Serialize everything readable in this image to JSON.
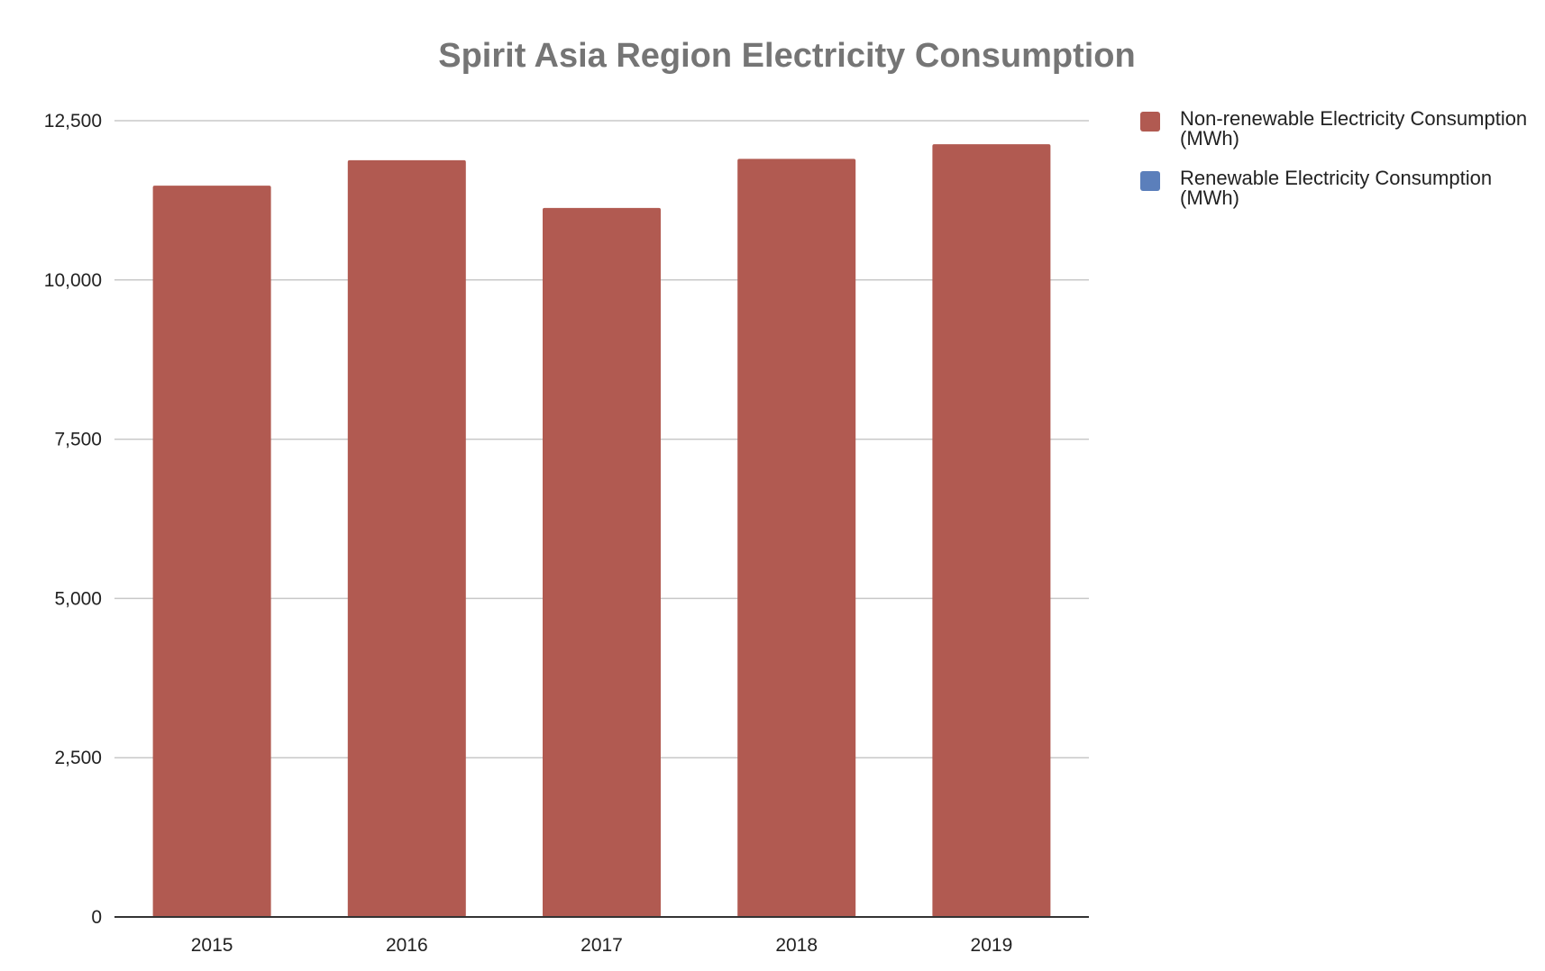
{
  "chart_data": {
    "type": "bar",
    "title": "Spirit Asia Region Electricity Consumption",
    "xlabel": "",
    "ylabel": "",
    "categories": [
      "2015",
      "2016",
      "2017",
      "2018",
      "2019"
    ],
    "series": [
      {
        "name": "Non-renewable Electricity Consumption\n(MWh)",
        "color": "#b15a51",
        "values": [
          11480,
          11880,
          11130,
          11900,
          12130
        ]
      },
      {
        "name": "Renewable Electricity Consumption\n(MWh)",
        "color": "#5b7fbb",
        "values": [
          0,
          0,
          0,
          0,
          0
        ]
      }
    ],
    "ylim": [
      0,
      12500
    ],
    "yticks": [
      0,
      2500,
      5000,
      7500,
      10000,
      12500
    ],
    "ytick_labels": [
      "0",
      "2,500",
      "5,000",
      "7,500",
      "10,000",
      "12,500"
    ],
    "stacked": true,
    "grid": true,
    "legend_position": "right",
    "colors": {
      "title": "#757575",
      "grid": "#c8c8c8",
      "axis": "#333333",
      "text": "#222222"
    }
  }
}
